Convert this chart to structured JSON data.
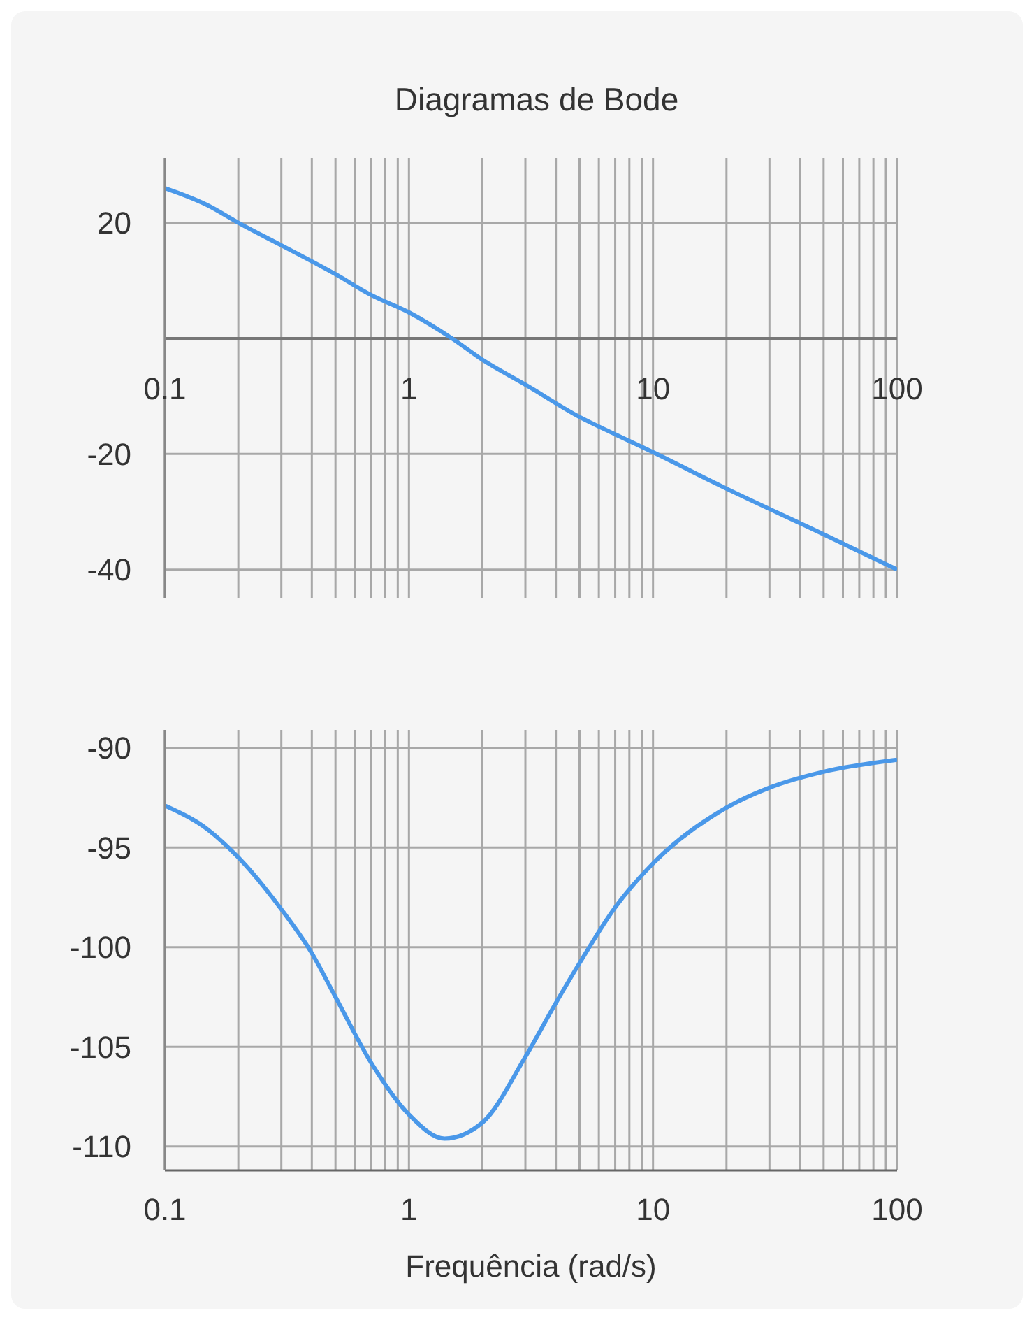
{
  "chart_data": [
    {
      "type": "line",
      "title": "Diagramas de Bode",
      "x": [
        0.1,
        0.15,
        0.2,
        0.3,
        0.5,
        0.7,
        1,
        1.5,
        2,
        3,
        5,
        7,
        10,
        20,
        50,
        100
      ],
      "values": [
        26.0,
        23.0,
        20.0,
        16.1,
        11.1,
        7.5,
        4.5,
        0,
        -3.7,
        -8.0,
        -13.6,
        -16.6,
        -19.7,
        -26.0,
        -33.9,
        -40.0
      ],
      "color": "#4a98e9",
      "xlim": [
        0.1,
        100
      ],
      "xticks": [
        0.1,
        {
          "value": 0.2,
          "label": null
        },
        {
          "value": 0.3,
          "label": null
        },
        {
          "value": 0.4,
          "label": null
        },
        {
          "value": 0.5,
          "label": null
        },
        {
          "value": 0.6,
          "label": null
        },
        {
          "value": 0.7,
          "label": null
        },
        {
          "value": 0.8,
          "label": null
        },
        {
          "value": 0.9,
          "label": null
        },
        1,
        {
          "value": 2,
          "label": null
        },
        {
          "value": 3,
          "label": null
        },
        {
          "value": 4,
          "label": null
        },
        {
          "value": 5,
          "label": null
        },
        {
          "value": 6,
          "label": null
        },
        {
          "value": 7,
          "label": null
        },
        {
          "value": 8,
          "label": null
        },
        {
          "value": 9,
          "label": null
        },
        10,
        {
          "value": 20,
          "label": null
        },
        {
          "value": 30,
          "label": null
        },
        {
          "value": 40,
          "label": null
        },
        {
          "value": 50,
          "label": null
        },
        {
          "value": 60,
          "label": null
        },
        {
          "value": 70,
          "label": null
        },
        {
          "value": 80,
          "label": null
        },
        {
          "value": 90,
          "label": null
        },
        100
      ],
      "ylim": [
        -45,
        31.2
      ],
      "yticks": [
        -40,
        -20,
        {
          "value": 0,
          "label": null
        },
        20
      ],
      "log": "x",
      "grid": true
    },
    {
      "type": "line",
      "xlabel": "Frequência (rad/s)",
      "x": [
        0.1,
        0.15,
        0.2,
        0.3,
        0.4,
        0.5,
        0.7,
        1,
        1.4,
        2,
        3,
        4,
        5,
        7,
        10,
        20,
        30,
        50,
        100
      ],
      "values": [
        -92.9,
        -94.1,
        -95.5,
        -98.1,
        -100.3,
        -102.5,
        -105.8,
        -108.4,
        -109.6,
        -108.8,
        -105.5,
        -102.8,
        -100.8,
        -98.0,
        -95.8,
        -93.0,
        -92.0,
        -91.2,
        -90.6
      ],
      "color": "#4a98e9",
      "xlim": [
        0.1,
        100
      ],
      "xticks": [
        0.1,
        {
          "value": 0.2,
          "label": null
        },
        {
          "value": 0.3,
          "label": null
        },
        {
          "value": 0.4,
          "label": null
        },
        {
          "value": 0.5,
          "label": null
        },
        {
          "value": 0.6,
          "label": null
        },
        {
          "value": 0.7,
          "label": null
        },
        {
          "value": 0.8,
          "label": null
        },
        {
          "value": 0.9,
          "label": null
        },
        1,
        {
          "value": 2,
          "label": null
        },
        {
          "value": 3,
          "label": null
        },
        {
          "value": 4,
          "label": null
        },
        {
          "value": 5,
          "label": null
        },
        {
          "value": 6,
          "label": null
        },
        {
          "value": 7,
          "label": null
        },
        {
          "value": 8,
          "label": null
        },
        {
          "value": 9,
          "label": null
        },
        10,
        {
          "value": 20,
          "label": null
        },
        {
          "value": 30,
          "label": null
        },
        {
          "value": 40,
          "label": null
        },
        {
          "value": 50,
          "label": null
        },
        {
          "value": 60,
          "label": null
        },
        {
          "value": 70,
          "label": null
        },
        {
          "value": 80,
          "label": null
        },
        {
          "value": 90,
          "label": null
        },
        100
      ],
      "ylim": [
        -111.2,
        -89.1
      ],
      "yticks": [
        -110,
        -105,
        -100,
        -95,
        -90
      ],
      "log": "x",
      "grid": true
    }
  ]
}
